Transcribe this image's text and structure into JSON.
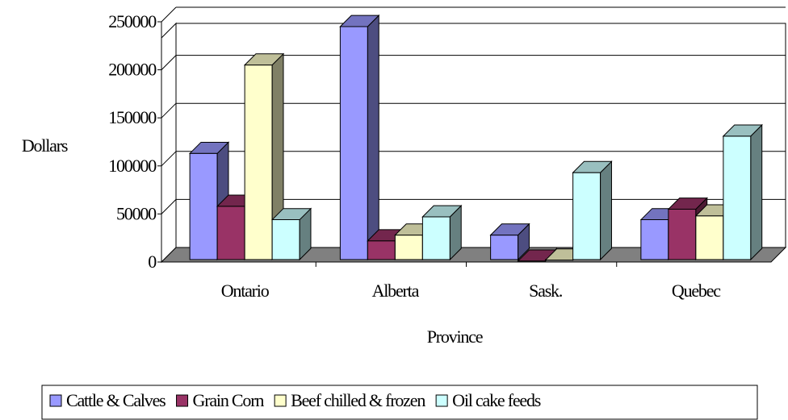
{
  "chart_data": {
    "type": "bar3d",
    "categories": [
      "Ontario",
      "Alberta",
      "Sask.",
      "Quebec"
    ],
    "series": [
      {
        "name": "Cattle & Calves",
        "color": "#9999ff",
        "values": [
          113000,
          245000,
          28000,
          44000
        ]
      },
      {
        "name": "Grain Corn",
        "color": "#993366",
        "values": [
          58000,
          22000,
          1000,
          55000
        ]
      },
      {
        "name": "Beef chilled & frozen",
        "color": "#ffffcc",
        "values": [
          205000,
          28000,
          2000,
          48000
        ]
      },
      {
        "name": "Oil cake feeds",
        "color": "#ccffff",
        "values": [
          44000,
          47000,
          93000,
          131000
        ]
      }
    ],
    "ylim": [
      0,
      250000
    ],
    "yticks": [
      0,
      50000,
      100000,
      150000,
      200000,
      250000
    ],
    "y_label": "Dollars",
    "x_label": "Province",
    "grid": true,
    "legend": "bottom"
  }
}
